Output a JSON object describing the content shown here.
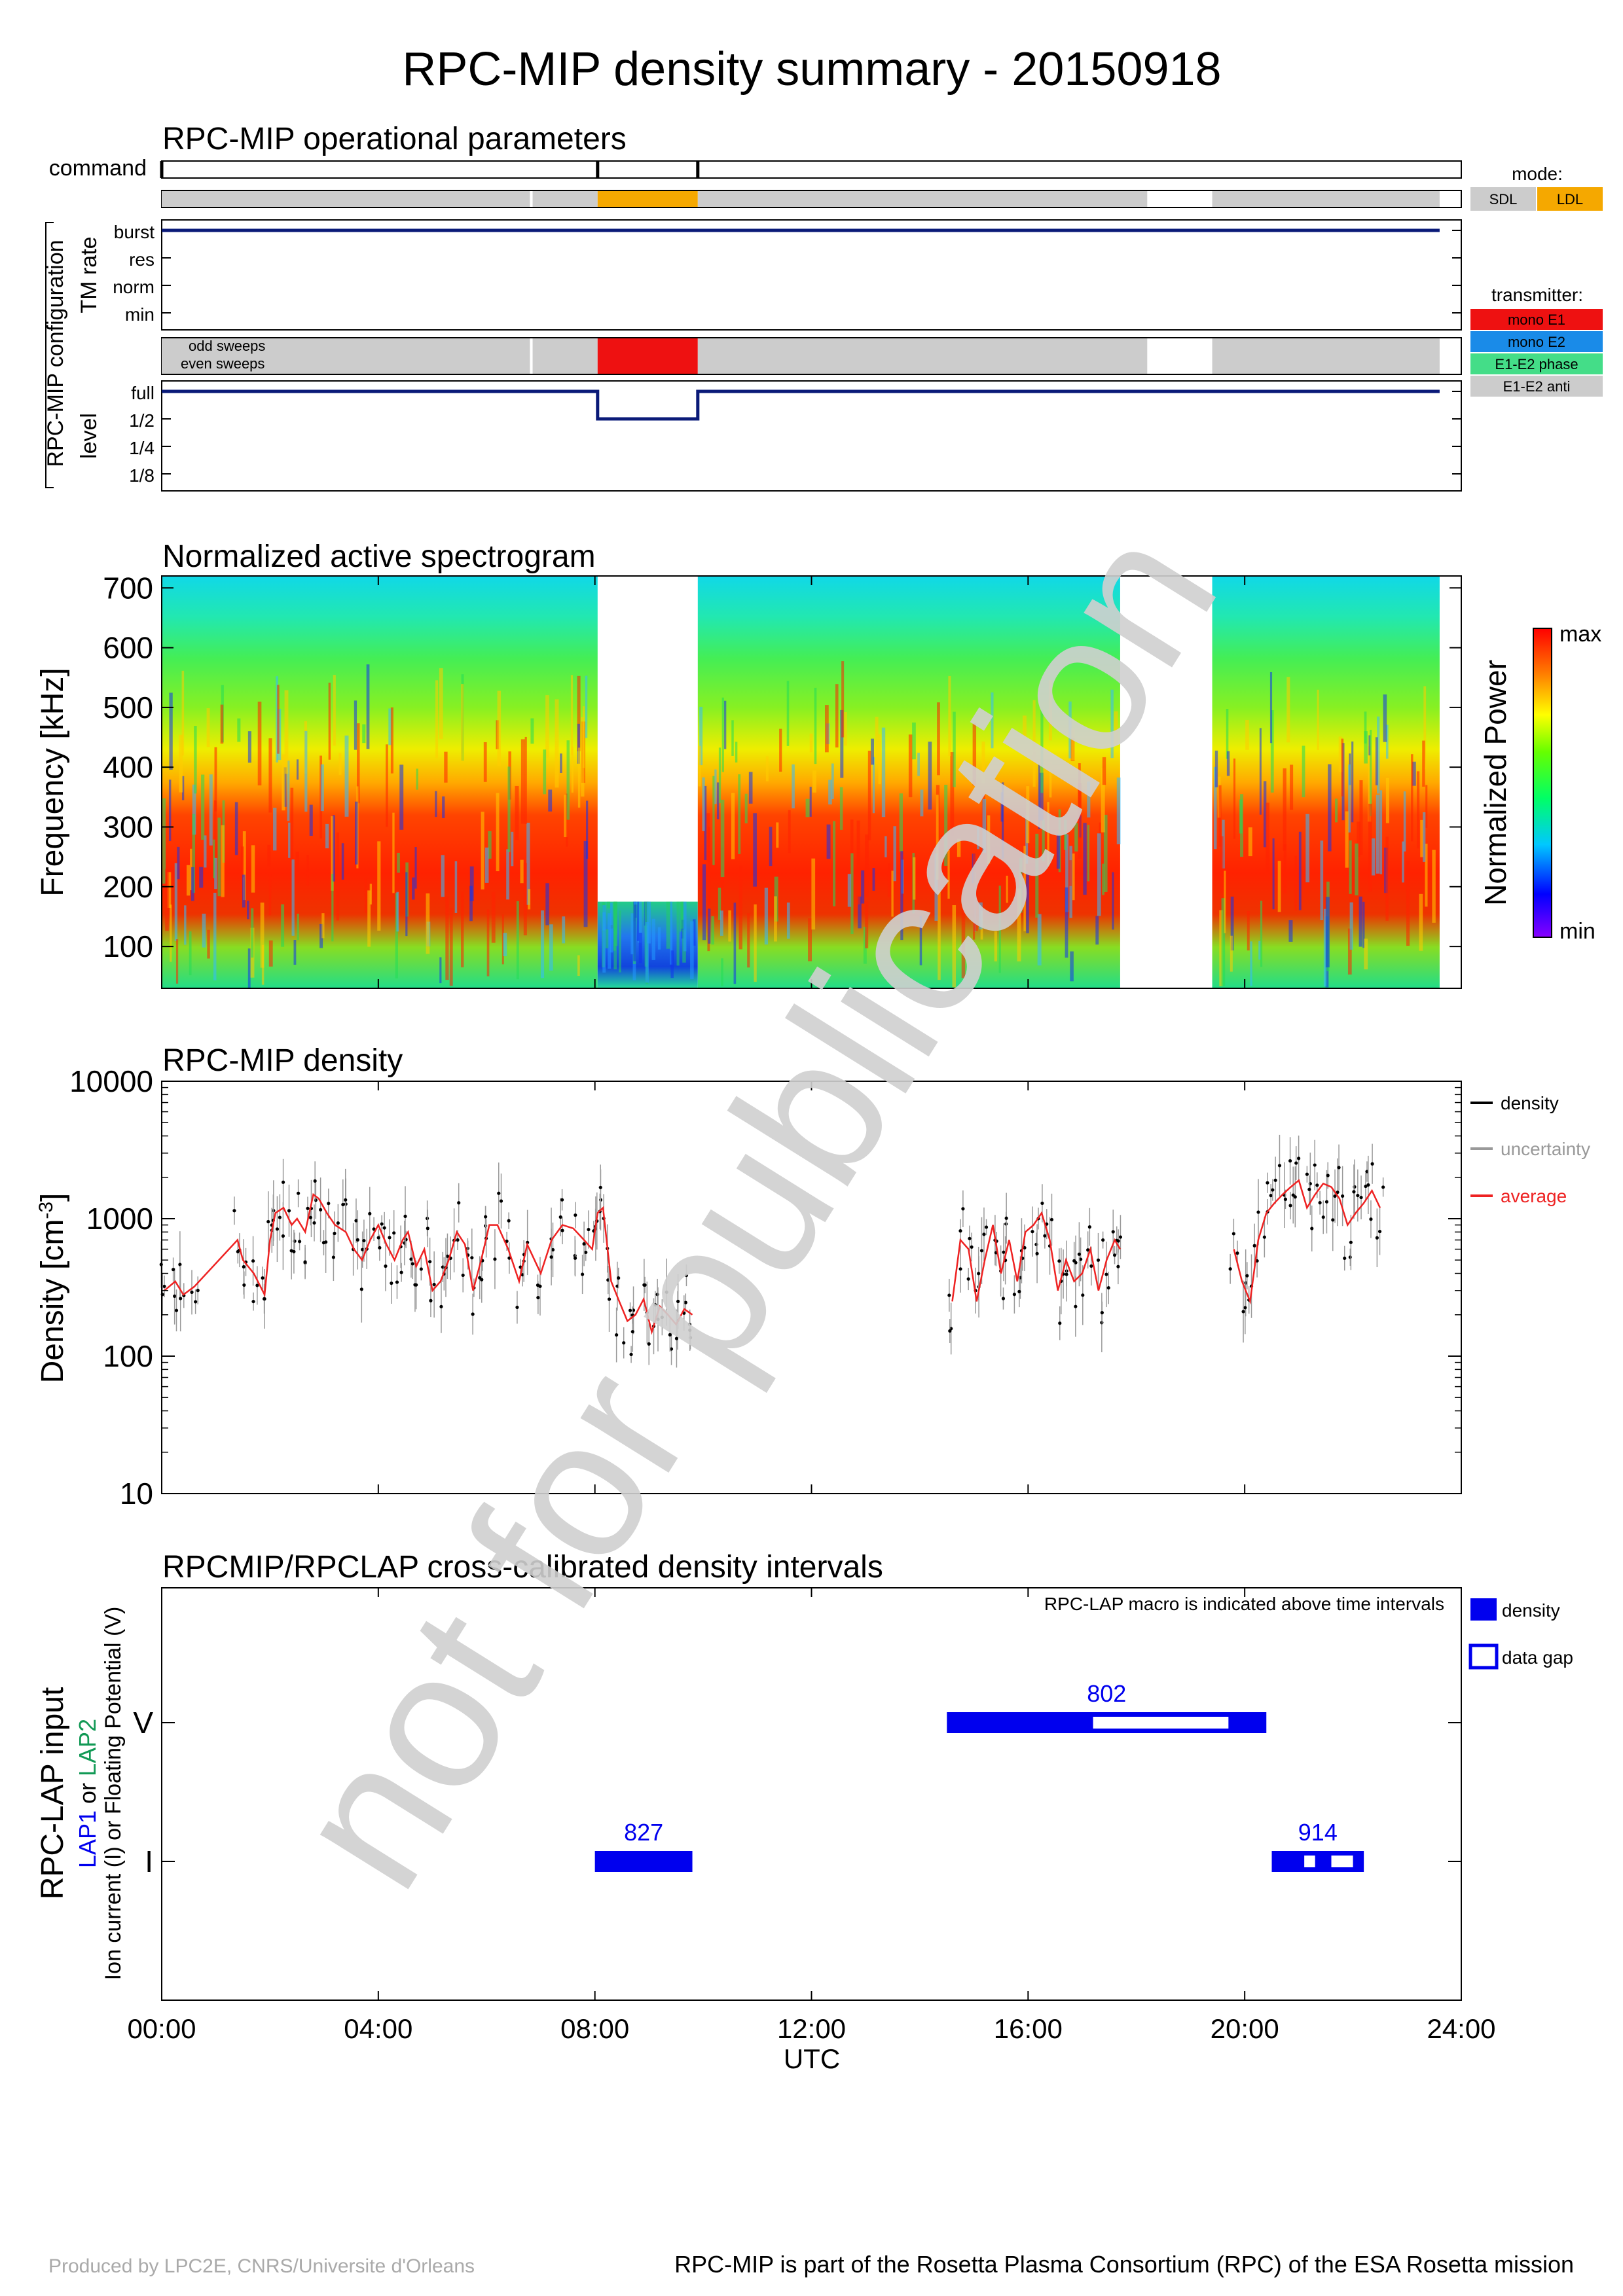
{
  "title": "RPC-MIP density summary - 20150918",
  "watermark": "not for publication",
  "footer": {
    "left": "Produced by LPC2E, CNRS/Universite d'Orleans",
    "right": "RPC-MIP is part of the Rosetta Plasma Consortium (RPC) of the ESA Rosetta mission"
  },
  "colors": {
    "navy": "#0a1a78",
    "sdl": "#cccccc",
    "ldl": "#f5a800",
    "mono_e1": "#ee1111",
    "mono_e2": "#1a8be8",
    "e1e2_phase": "#44dd88",
    "e1e2_anti": "#cccccc",
    "lap_blue": "#0000ee",
    "lap_green": "#119955",
    "average": "#ee2222",
    "uncertainty": "#999999"
  },
  "time_axis": {
    "ticks": [
      "00:00",
      "04:00",
      "08:00",
      "12:00",
      "16:00",
      "20:00",
      "24:00"
    ],
    "label": "UTC"
  },
  "panel1": {
    "title": "RPC-MIP operational parameters",
    "command_label": "command",
    "config_label": "RPC-MIP configuration",
    "tm_rate_label": "TM rate",
    "tm_rate_levels": [
      "burst",
      "res",
      "norm",
      "min"
    ],
    "sweep_labels": [
      "odd sweeps",
      "even sweeps"
    ],
    "level_label": "level",
    "level_levels": [
      "full",
      "1/2",
      "1/4",
      "1/8"
    ],
    "legend_mode_title": "mode:",
    "legend_modes": [
      "SDL",
      "LDL"
    ],
    "legend_tx_title": "transmitter:",
    "legend_tx": [
      "mono E1",
      "mono E2",
      "E1-E2 phase",
      "E1-E2 anti"
    ]
  },
  "panel2": {
    "title": "Normalized active spectrogram",
    "ylabel": "Frequency [kHz]",
    "yticks": [
      "100",
      "200",
      "300",
      "400",
      "500",
      "600",
      "700"
    ],
    "colorbar_label": "Normalized Power",
    "colorbar_max": "max",
    "colorbar_min": "min"
  },
  "panel3": {
    "title": "RPC-MIP density",
    "ylabel": "Density [cm",
    "ylabel_sup": "-3",
    "ylabel_end": "]",
    "yticks": [
      "10",
      "100",
      "1000",
      "10000"
    ],
    "legend": [
      "density",
      "uncertainty",
      "average"
    ]
  },
  "panel4": {
    "title": "RPCMIP/RPCLAP cross-calibrated density intervals",
    "note": "RPC-LAP macro is indicated above time intervals",
    "ylabel_main": "RPC-LAP input",
    "ylabel_lap1": "LAP1",
    "ylabel_or": "or",
    "ylabel_lap2": "LAP2",
    "ylabel_sub": "Ion current (I) or Floating Potential (V)",
    "yticks": [
      "V",
      "I"
    ],
    "legend": [
      "density",
      "data gap"
    ],
    "macro_labels": [
      "827",
      "802",
      "914"
    ]
  },
  "chart_data": [
    {
      "type": "table",
      "title": "RPC-MIP operational parameters",
      "x_unit": "hours UTC",
      "xlim": [
        0,
        24
      ],
      "command_times": [
        0,
        8.05,
        9.9
      ],
      "mode_segments": [
        {
          "start": 0,
          "end": 6.8,
          "mode": "SDL"
        },
        {
          "start": 6.85,
          "end": 8.05,
          "mode": "SDL"
        },
        {
          "start": 8.05,
          "end": 9.9,
          "mode": "LDL"
        },
        {
          "start": 9.9,
          "end": 18.2,
          "mode": "SDL"
        },
        {
          "start": 19.4,
          "end": 23.6,
          "mode": "SDL"
        }
      ],
      "tm_rate": {
        "value": "burst",
        "start": 0,
        "end": 23.6
      },
      "transmitter_segments": [
        {
          "start": 0,
          "end": 6.8,
          "tx": "E1-E2 anti"
        },
        {
          "start": 6.85,
          "end": 8.05,
          "tx": "E1-E2 anti"
        },
        {
          "start": 8.05,
          "end": 9.9,
          "tx": "mono E1"
        },
        {
          "start": 9.9,
          "end": 18.2,
          "tx": "E1-E2 anti"
        },
        {
          "start": 19.4,
          "end": 23.6,
          "tx": "E1-E2 anti"
        }
      ],
      "level_steps": [
        {
          "start": 0,
          "end": 8.05,
          "level": "full"
        },
        {
          "start": 8.05,
          "end": 9.9,
          "level": "1/2"
        },
        {
          "start": 9.9,
          "end": 23.6,
          "level": "full"
        }
      ]
    },
    {
      "type": "heatmap",
      "title": "Normalized active spectrogram",
      "ylabel": "Frequency [kHz]",
      "xlim": [
        0,
        24
      ],
      "ylim": [
        30,
        720
      ],
      "coverage": [
        {
          "start": 0,
          "end": 8.05,
          "fmin": 30,
          "fmax": 720
        },
        {
          "start": 8.05,
          "end": 9.9,
          "fmin": 30,
          "fmax": 175
        },
        {
          "start": 9.9,
          "end": 17.7,
          "fmin": 30,
          "fmax": 720
        },
        {
          "start": 19.4,
          "end": 23.6,
          "fmin": 30,
          "fmax": 720
        }
      ],
      "colorbar": [
        "max",
        "min"
      ]
    },
    {
      "type": "scatter",
      "title": "RPC-MIP density",
      "ylabel": "Density [cm-3]",
      "yscale": "log",
      "ylim": [
        10,
        10000
      ],
      "xlim": [
        0,
        24
      ],
      "legend_position": "right",
      "series": [
        {
          "name": "average",
          "x": [
            0.05,
            0.25,
            0.4,
            0.6,
            1.4,
            1.5,
            1.7,
            1.9,
            2.0,
            2.1,
            2.25,
            2.4,
            2.5,
            2.65,
            2.8,
            2.9,
            3.05,
            3.2,
            3.4,
            3.55,
            3.7,
            3.85,
            4.0,
            4.15,
            4.3,
            4.45,
            4.55,
            4.7,
            4.85,
            5.0,
            5.15,
            5.3,
            5.45,
            5.6,
            5.75,
            5.9,
            6.05,
            6.2,
            6.4,
            6.6,
            6.75,
            7.0,
            7.2,
            7.4,
            7.6,
            7.8,
            7.95,
            8.05,
            8.15,
            8.3,
            8.45,
            8.6,
            8.75,
            8.9,
            9.05,
            9.2,
            9.35,
            9.5,
            9.65,
            9.8
          ],
          "values": [
            300,
            350,
            280,
            320,
            700,
            500,
            400,
            280,
            700,
            1100,
            1200,
            900,
            1000,
            800,
            1500,
            1400,
            1100,
            900,
            800,
            600,
            500,
            700,
            900,
            650,
            500,
            700,
            800,
            450,
            600,
            300,
            350,
            500,
            800,
            650,
            300,
            500,
            900,
            900,
            600,
            350,
            650,
            400,
            700,
            900,
            850,
            700,
            600,
            1100,
            1200,
            350,
            250,
            180,
            200,
            260,
            150,
            230,
            200,
            170,
            220,
            200
          ]
        },
        {
          "name": "average",
          "x": [
            14.6,
            14.75,
            14.9,
            15.05,
            15.2,
            15.35,
            15.5,
            15.65,
            15.8,
            15.95,
            16.1,
            16.25,
            16.4,
            16.55,
            16.7,
            16.85,
            17.0,
            17.15,
            17.3,
            17.45,
            17.6,
            17.7
          ],
          "values": [
            250,
            700,
            600,
            250,
            500,
            900,
            400,
            700,
            350,
            800,
            900,
            1100,
            700,
            300,
            500,
            350,
            400,
            600,
            300,
            500,
            700,
            600
          ]
        },
        {
          "name": "average",
          "x": [
            19.8,
            19.95,
            20.1,
            20.25,
            20.4,
            20.55,
            20.7,
            20.85,
            21.0,
            21.15,
            21.3,
            21.45,
            21.6,
            21.75,
            21.9,
            22.05,
            22.2,
            22.35,
            22.5
          ],
          "values": [
            600,
            350,
            250,
            700,
            1100,
            1300,
            1500,
            1700,
            1900,
            1200,
            1500,
            1800,
            1700,
            1400,
            900,
            1100,
            1300,
            1600,
            1200
          ]
        }
      ]
    },
    {
      "type": "table",
      "title": "RPCMIP/RPCLAP cross-calibrated density intervals",
      "xlim": [
        0,
        24
      ],
      "intervals": [
        {
          "macro": "827",
          "input": "I",
          "start": 8.0,
          "end": 9.8,
          "gaps": []
        },
        {
          "macro": "802",
          "input": "V",
          "start": 14.5,
          "end": 20.4,
          "gaps": [
            [
              17.2,
              19.7
            ]
          ]
        },
        {
          "macro": "914",
          "input": "I",
          "start": 20.5,
          "end": 22.2,
          "gaps": [
            [
              21.1,
              21.3
            ],
            [
              21.6,
              22.0
            ]
          ]
        }
      ]
    }
  ]
}
